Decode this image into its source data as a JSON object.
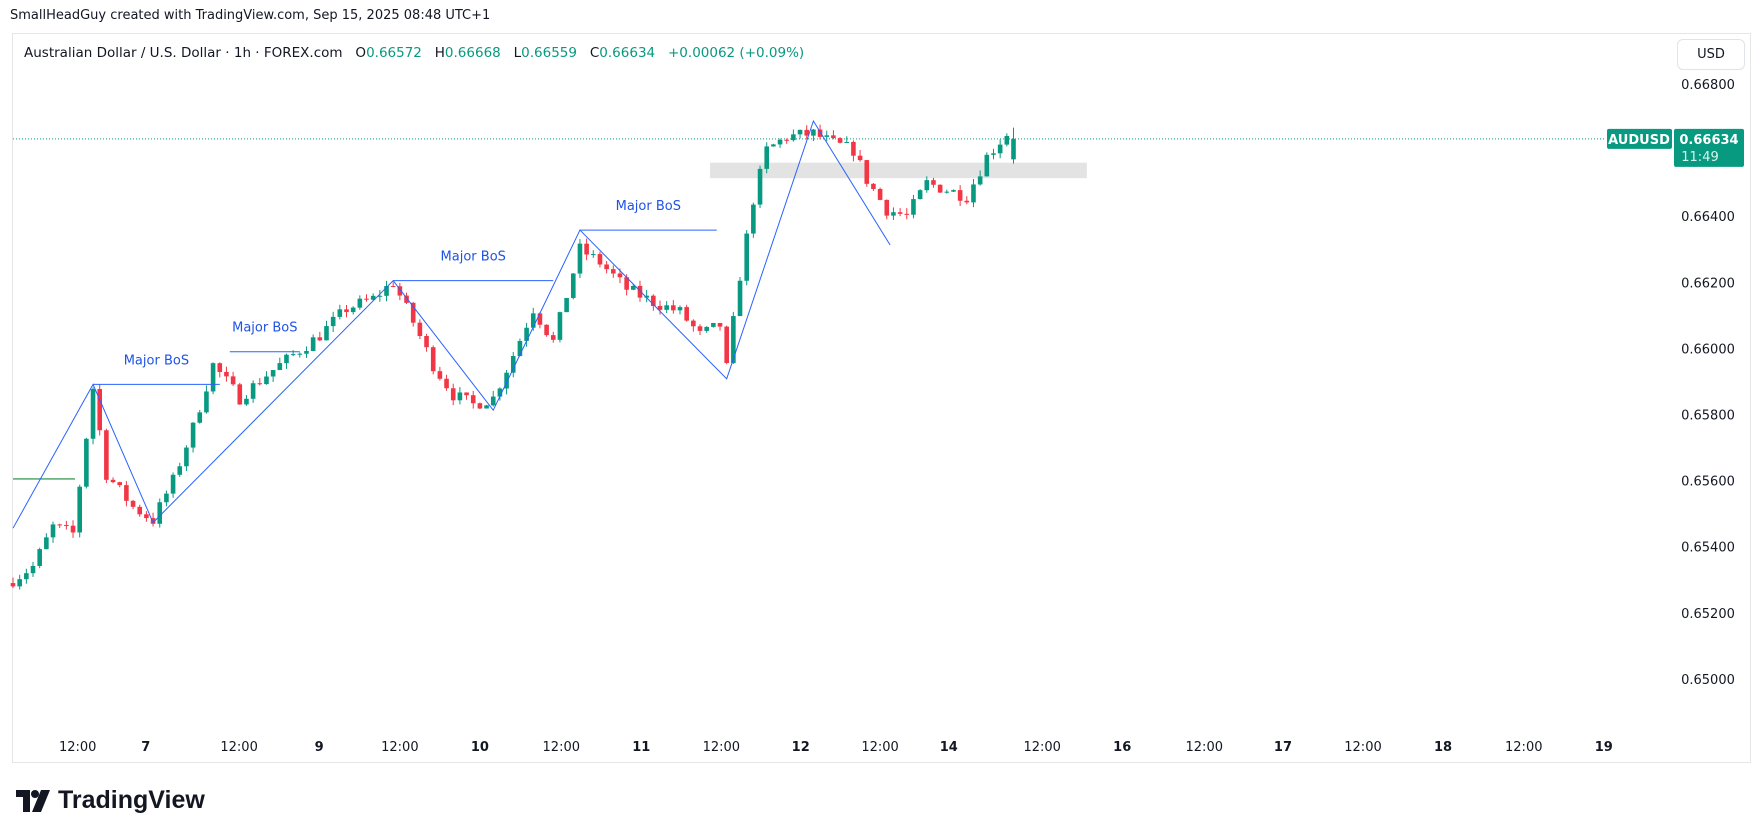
{
  "caption": "SmallHeadGuy created with TradingView.com, Sep 15, 2025 08:48 UTC+1",
  "legend": {
    "symbol_desc": "Australian Dollar / U.S. Dollar · 1h · FOREX.com",
    "o_label": "O",
    "o": "0.66572",
    "h_label": "H",
    "h": "0.66668",
    "l_label": "L",
    "l": "0.66559",
    "c_label": "C",
    "c": "0.66634",
    "change": "+0.00062 (+0.09%)"
  },
  "currency_button": "USD",
  "symbol_tag": "AUDUSD",
  "last_price": "0.66634",
  "countdown": "11:49",
  "logo_text": "TradingView",
  "colors": {
    "up": "#089981",
    "down": "#f23645",
    "zigzag": "#2962ff",
    "label": "#1e53e5",
    "zone": "#e3e3e3"
  },
  "chart_data": {
    "type": "candlestick",
    "timeframe": "1h",
    "y_ticks": [
      0.668,
      0.664,
      0.662,
      0.66,
      0.658,
      0.656,
      0.654,
      0.652,
      0.65
    ],
    "y_tick_labels": [
      "0.66800",
      "0.66400",
      "0.66200",
      "0.66000",
      "0.65800",
      "0.65600",
      "0.65400",
      "0.65200",
      "0.65000"
    ],
    "x_ticks": [
      {
        "label": "12:00",
        "bar": 9.7,
        "bold": false
      },
      {
        "label": "7",
        "bar": 19.9,
        "bold": true
      },
      {
        "label": "12:00",
        "bar": 33.9,
        "bold": false
      },
      {
        "label": "9",
        "bar": 45.9,
        "bold": true
      },
      {
        "label": "12:00",
        "bar": 58.0,
        "bold": false
      },
      {
        "label": "10",
        "bar": 70.0,
        "bold": true
      },
      {
        "label": "12:00",
        "bar": 82.2,
        "bold": false
      },
      {
        "label": "11",
        "bar": 94.2,
        "bold": true
      },
      {
        "label": "12:00",
        "bar": 106.2,
        "bold": false
      },
      {
        "label": "12",
        "bar": 118.1,
        "bold": true
      },
      {
        "label": "12:00",
        "bar": 130.0,
        "bold": false
      },
      {
        "label": "14",
        "bar": 140.3,
        "bold": true
      },
      {
        "label": "12:00",
        "bar": 154.3,
        "bold": false
      },
      {
        "label": "16",
        "bar": 166.3,
        "bold": true
      },
      {
        "label": "12:00",
        "bar": 178.6,
        "bold": false
      },
      {
        "label": "17",
        "bar": 190.4,
        "bold": true
      },
      {
        "label": "12:00",
        "bar": 202.4,
        "bold": false
      },
      {
        "label": "18",
        "bar": 214.4,
        "bold": true
      },
      {
        "label": "12:00",
        "bar": 226.5,
        "bold": false
      },
      {
        "label": "19",
        "bar": 238.5,
        "bold": true
      }
    ],
    "price_path": [
      [
        0,
        0.653
      ],
      [
        3,
        0.6534
      ],
      [
        6,
        0.6546
      ],
      [
        9,
        0.6544
      ],
      [
        12,
        0.6588
      ],
      [
        14,
        0.6562
      ],
      [
        18,
        0.6552
      ],
      [
        21,
        0.6548
      ],
      [
        24,
        0.656
      ],
      [
        27,
        0.6576
      ],
      [
        30,
        0.6595
      ],
      [
        34,
        0.6585
      ],
      [
        38,
        0.6592
      ],
      [
        42,
        0.6598
      ],
      [
        46,
        0.6604
      ],
      [
        50,
        0.6612
      ],
      [
        54,
        0.6615
      ],
      [
        57,
        0.662
      ],
      [
        60,
        0.6608
      ],
      [
        63,
        0.6595
      ],
      [
        66,
        0.6586
      ],
      [
        69,
        0.6583
      ],
      [
        72,
        0.6585
      ],
      [
        75,
        0.6598
      ],
      [
        78,
        0.6612
      ],
      [
        81,
        0.6602
      ],
      [
        85,
        0.663
      ],
      [
        88,
        0.6626
      ],
      [
        92,
        0.6618
      ],
      [
        96,
        0.6614
      ],
      [
        100,
        0.6611
      ],
      [
        103,
        0.6604
      ],
      [
        106,
        0.6607
      ],
      [
        107,
        0.6594
      ],
      [
        109,
        0.6622
      ],
      [
        111,
        0.6645
      ],
      [
        113,
        0.666
      ],
      [
        116,
        0.6664
      ],
      [
        120,
        0.6665
      ],
      [
        123,
        0.6662
      ],
      [
        126,
        0.666
      ],
      [
        128,
        0.6651
      ],
      [
        131,
        0.6642
      ],
      [
        134,
        0.664
      ],
      [
        137,
        0.665
      ],
      [
        140,
        0.6648
      ],
      [
        143,
        0.6646
      ],
      [
        146,
        0.6658
      ],
      [
        149,
        0.6665
      ],
      [
        150,
        0.66634
      ]
    ],
    "last_candle": {
      "o": 0.66572,
      "h": 0.66668,
      "l": 0.66559,
      "c": 0.66634
    },
    "zigzag": [
      [
        0,
        0.65456
      ],
      [
        12,
        0.65891
      ],
      [
        21,
        0.65473
      ],
      [
        57,
        0.66205
      ],
      [
        72,
        0.65813
      ],
      [
        85,
        0.66358
      ],
      [
        107,
        0.65908
      ],
      [
        120,
        0.66688
      ],
      [
        131.5,
        0.66313
      ]
    ],
    "bos": [
      {
        "label": "Major BoS",
        "price": 0.65891,
        "from": 12,
        "to": 31
      },
      {
        "label": "Major BoS",
        "price": 0.6599,
        "from": 32.5,
        "to": 43
      },
      {
        "label": "Major BoS",
        "price": 0.66205,
        "from": 57,
        "to": 81
      },
      {
        "label": "Major BoS",
        "price": 0.66358,
        "from": 85,
        "to": 105.5
      }
    ],
    "green_level": {
      "price": 0.65605,
      "from": 0,
      "to": 9.3
    },
    "zone": {
      "top": 0.66562,
      "bottom": 0.66515,
      "from": 104.5,
      "to": 161
    },
    "current_price": 0.66634
  }
}
